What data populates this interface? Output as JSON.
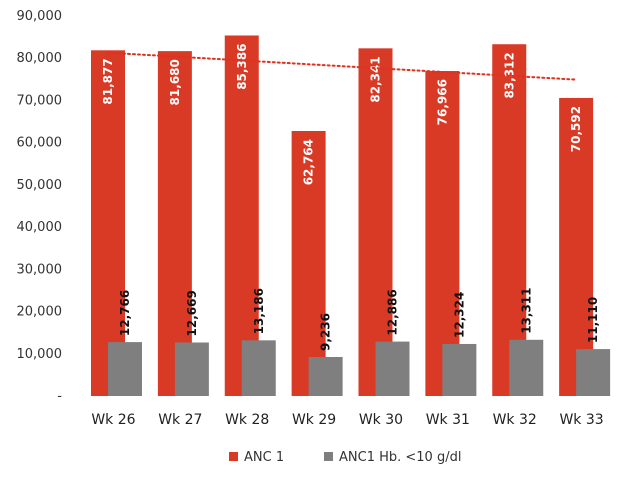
{
  "chart_data": {
    "type": "bar",
    "categories": [
      "Wk 26",
      "Wk 27",
      "Wk 28",
      "Wk 29",
      "Wk 30",
      "Wk 31",
      "Wk 32",
      "Wk 33"
    ],
    "series": [
      {
        "name": "ANC 1",
        "color": "#d93a26",
        "values": [
          81877,
          81680,
          85386,
          62764,
          82341,
          76966,
          83312,
          70592
        ],
        "labels": [
          "81,877",
          "81,680",
          "85,386",
          "62,764",
          "82,341",
          "76,966",
          "83,312",
          "70,592"
        ]
      },
      {
        "name": "ANC1 Hb. <10 g/dl",
        "color": "#7f7f7f",
        "values": [
          12766,
          12669,
          13186,
          9236,
          12886,
          12324,
          13311,
          11110
        ],
        "labels": [
          "12,766",
          "12,669",
          "13,186",
          "9,236",
          "12,886",
          "12,324",
          "13,311",
          "11,110"
        ]
      }
    ],
    "trendline": {
      "series": "ANC 1",
      "type": "linear",
      "color": "#e0301e",
      "style": "dotted"
    },
    "ylim": [
      0,
      90000
    ],
    "yticks": [
      0,
      10000,
      20000,
      30000,
      40000,
      50000,
      60000,
      70000,
      80000,
      90000
    ],
    "ytick_labels": [
      "-",
      "10,000",
      "20,000",
      "30,000",
      "40,000",
      "50,000",
      "60,000",
      "70,000",
      "80,000",
      "90,000"
    ],
    "grid": false,
    "legend_position": "bottom",
    "title": "",
    "xlabel": "",
    "ylabel": ""
  }
}
